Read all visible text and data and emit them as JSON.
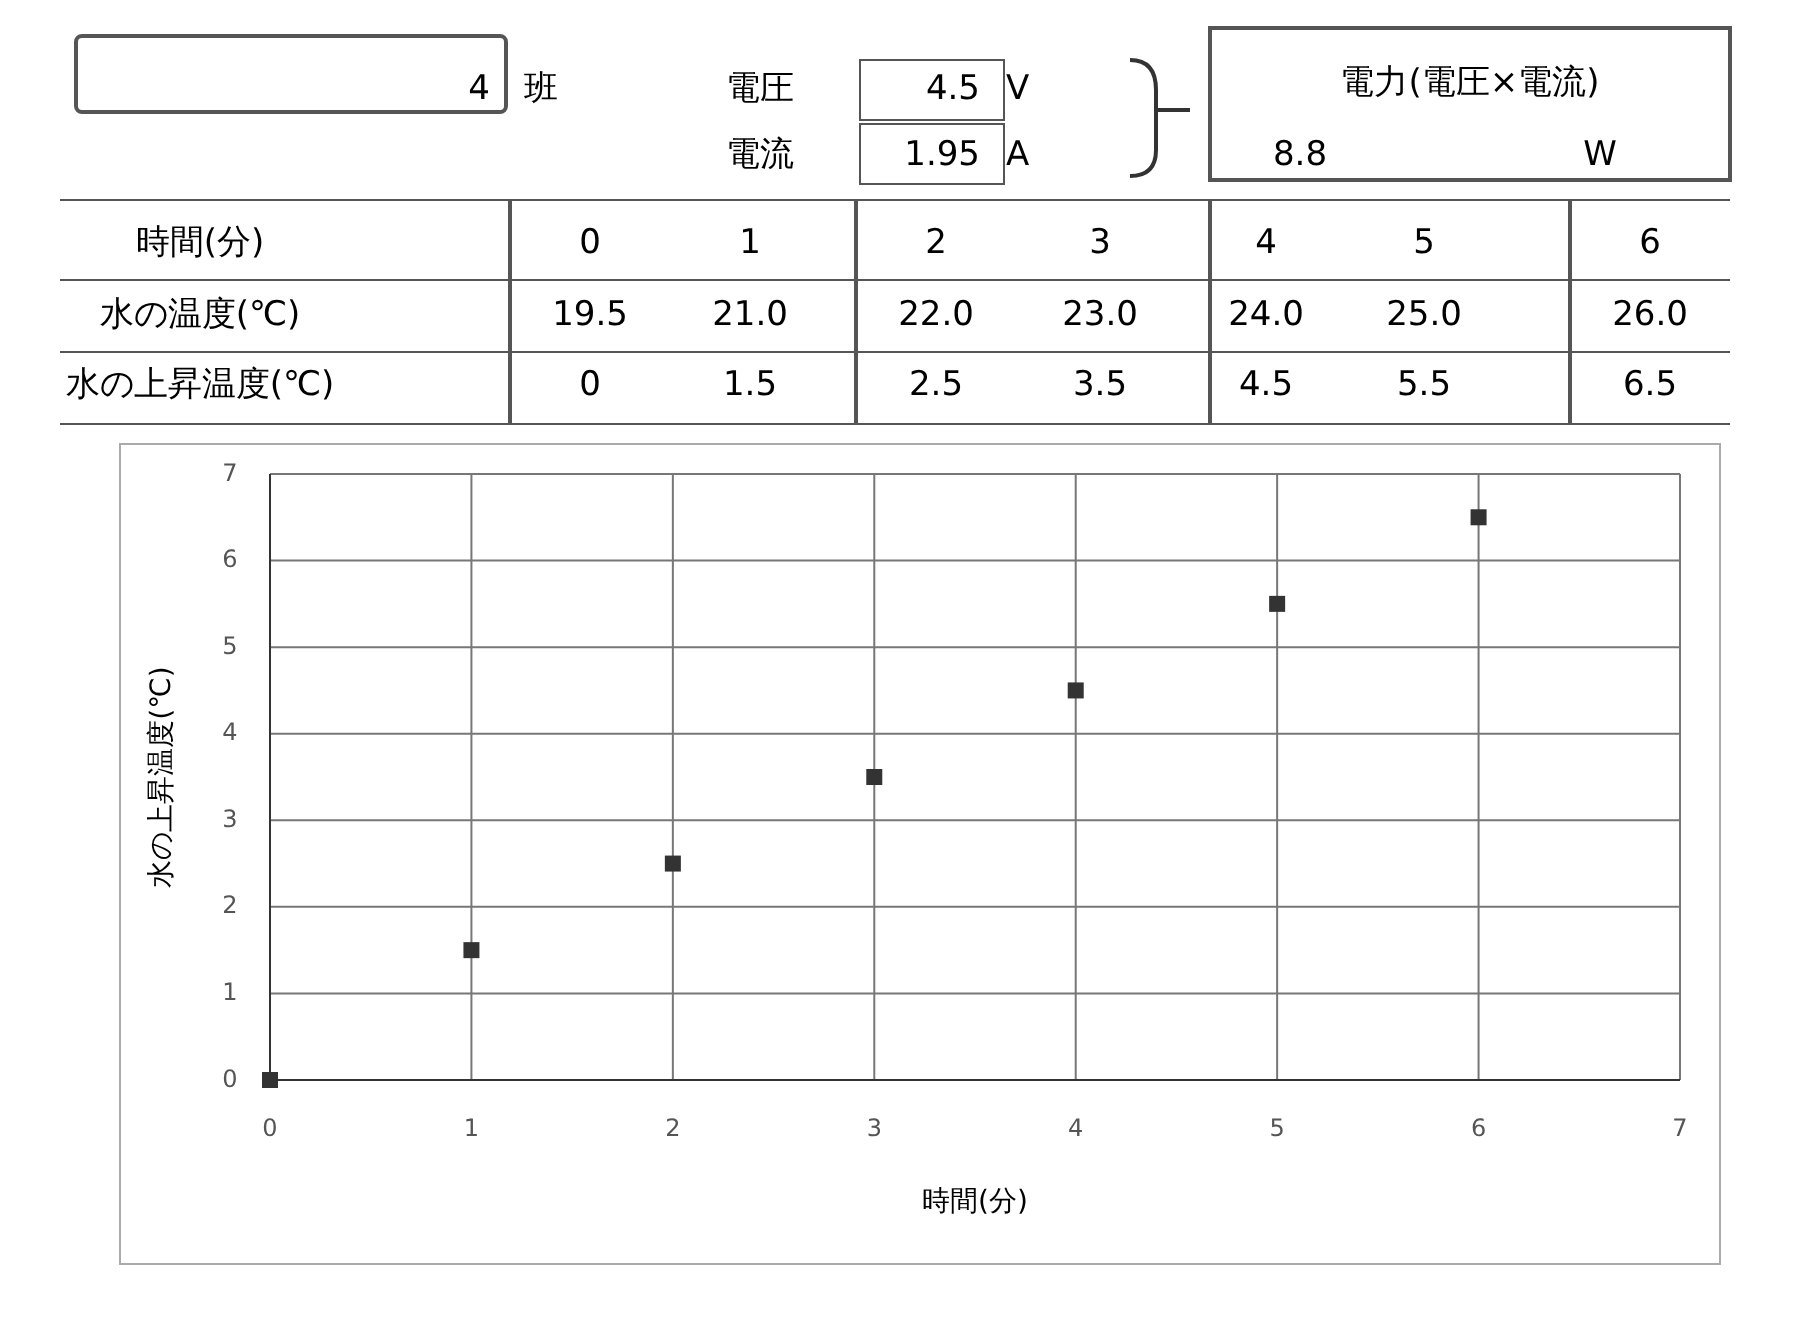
{
  "chart_data": {
    "type": "scatter",
    "xlabel": "時間(分)",
    "ylabel": "水の上昇温度(℃)",
    "x": [
      0,
      1,
      2,
      3,
      4,
      5,
      6
    ],
    "series": [
      {
        "color": "#333333",
        "values": [
          0,
          1.5,
          2.5,
          3.5,
          4.5,
          5.5,
          6.5
        ]
      }
    ],
    "xlim": [
      0,
      7
    ],
    "xticks": [
      0,
      1,
      2,
      3,
      4,
      5,
      6,
      7
    ],
    "ylim": [
      0,
      7
    ],
    "yticks": [
      0,
      1,
      2,
      3,
      4,
      5,
      6,
      7
    ],
    "grid": true,
    "marker": "square",
    "annotations": [
      "4",
      "班",
      "電圧",
      "4.5",
      "V",
      "電流",
      "1.95",
      "A",
      "電力(電圧×電流)",
      "8.8",
      "W",
      "時間(分)",
      "水の温度(℃)",
      "19.5",
      "21.0",
      "22.0",
      "23.0",
      "24.0",
      "25.0",
      "26.0",
      "水の上昇温度(℃)",
      "0",
      "1",
      "2",
      "3",
      "4",
      "5",
      "6",
      "0",
      "1.5",
      "2.5",
      "3.5",
      "4.5",
      "5.5",
      "6.5"
    ]
  }
}
